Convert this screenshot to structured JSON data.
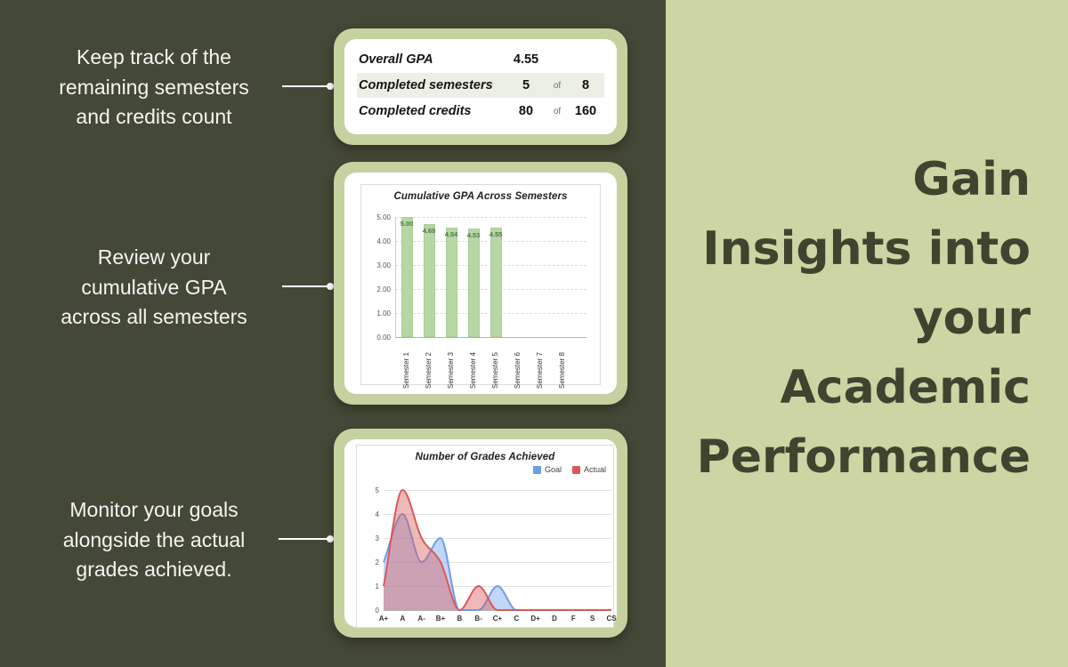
{
  "left_panel": {
    "annotations": [
      {
        "text": "Keep track of the\nremaining semesters\nand credits count"
      },
      {
        "text": "Review your\ncumulative GPA\nacross all semesters"
      },
      {
        "text": "Monitor your goals\nalongside the actual\ngrades achieved."
      }
    ]
  },
  "right_panel": {
    "headline": "Gain\nInsights into\nyour\nAcademic\nPerformance",
    "background_color": "#ccd5a3",
    "text_color": "#3e4430"
  },
  "stats_card": {
    "rows": [
      {
        "label": "Overall GPA",
        "value": "4.55",
        "of": "",
        "total": ""
      },
      {
        "label": "Completed semesters",
        "value": "5",
        "of": "of",
        "total": "8"
      },
      {
        "label": "Completed credits",
        "value": "80",
        "of": "of",
        "total": "160"
      }
    ]
  },
  "chart_data": [
    {
      "type": "bar",
      "title": "Cumulative GPA Across Semesters",
      "categories": [
        "Semester 1",
        "Semester 2",
        "Semester 3",
        "Semester 4",
        "Semester 5",
        "Semester 6",
        "Semester 7",
        "Semester 8"
      ],
      "values": [
        5.0,
        4.69,
        4.54,
        4.53,
        4.55,
        null,
        null,
        null
      ],
      "bar_labels": [
        "5.00",
        "4.69",
        "4.54",
        "4.53",
        "4.55"
      ],
      "y_ticks": [
        "5.00",
        "4.00",
        "3.00",
        "2.00",
        "1.00",
        "0.00"
      ],
      "ylim": [
        0,
        5
      ],
      "grid": true,
      "bar_color": "#b6d6a4",
      "bar_label_color": "#4c7a3e",
      "xlabel": "",
      "ylabel": ""
    },
    {
      "type": "area",
      "title": "Number of Grades Achieved",
      "categories": [
        "A+",
        "A",
        "A-",
        "B+",
        "B",
        "B-",
        "C+",
        "C",
        "D+",
        "D",
        "F",
        "S",
        "CS"
      ],
      "series": [
        {
          "name": "Goal",
          "color": "#6d9eeb",
          "values": [
            2,
            4,
            2,
            3,
            0,
            0,
            1,
            0,
            0,
            0,
            0,
            0,
            0
          ]
        },
        {
          "name": "Actual",
          "color": "#dc5858",
          "values": [
            1,
            5,
            3,
            2,
            0,
            1,
            0,
            0,
            0,
            0,
            0,
            0,
            0
          ]
        }
      ],
      "y_ticks": [
        "5",
        "4",
        "3",
        "2",
        "1",
        "0"
      ],
      "ylim": [
        0,
        5
      ],
      "grid": true,
      "legend_position": "top-right",
      "xlabel": "",
      "ylabel": ""
    }
  ]
}
